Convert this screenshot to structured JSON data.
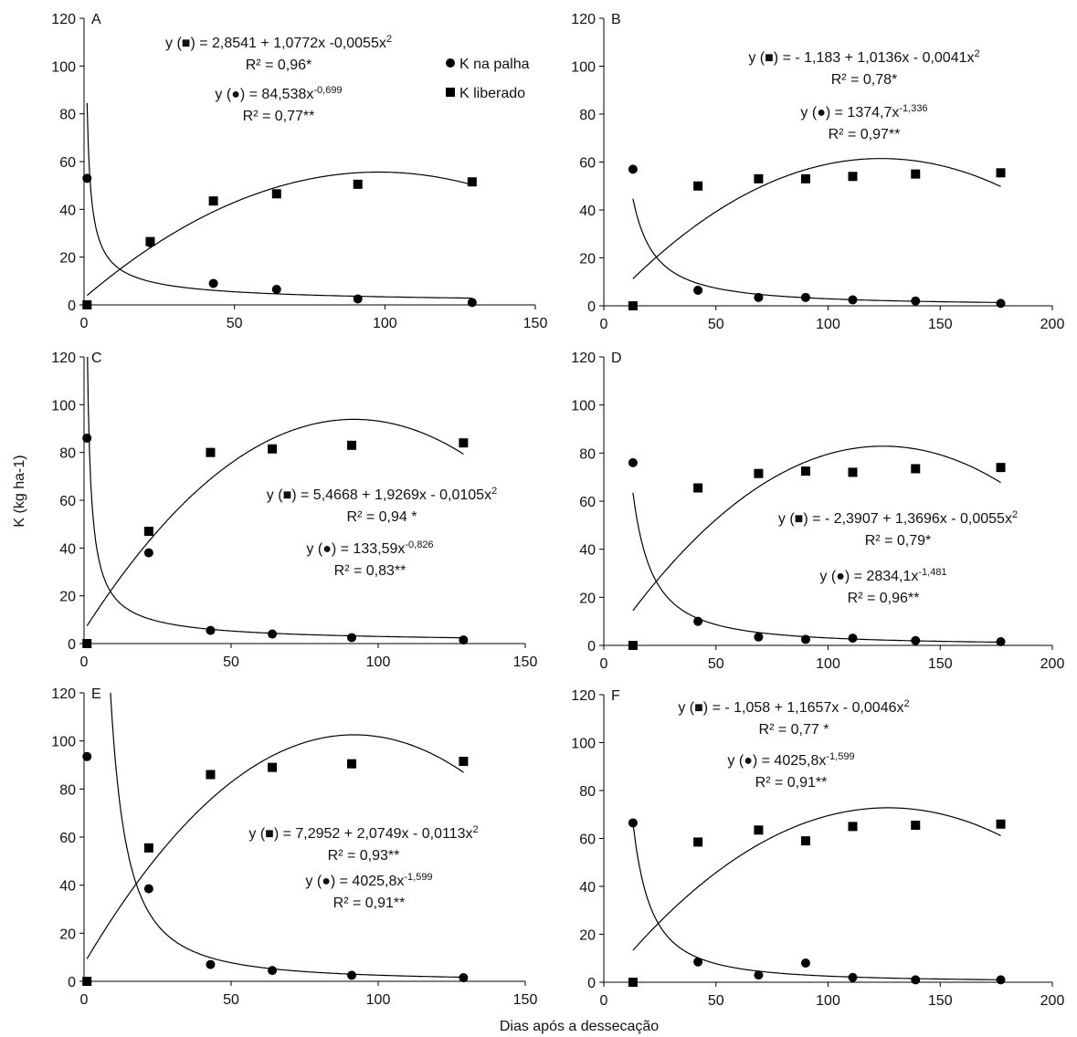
{
  "figure": {
    "xlabel": "Dias após a dessecação",
    "ylabel": "K (kg ha-1)",
    "legend": [
      {
        "marker": "circle",
        "label": "K na palha"
      },
      {
        "marker": "square",
        "label": "K liberado"
      }
    ]
  },
  "chart_data": [
    {
      "panel": "A",
      "type": "scatter",
      "xlim": [
        0,
        150
      ],
      "xticks": [
        0,
        50,
        100,
        150
      ],
      "ylim": [
        0,
        120
      ],
      "yticks": [
        0,
        20,
        40,
        60,
        80,
        100,
        120
      ],
      "series": [
        {
          "name": "K na palha",
          "marker": "circle",
          "x": [
            1,
            22,
            43,
            64,
            91,
            129
          ],
          "y": [
            53,
            26,
            9,
            6.5,
            2.5,
            1
          ]
        },
        {
          "name": "K liberado",
          "marker": "square",
          "x": [
            1,
            22,
            43,
            64,
            91,
            129
          ],
          "y": [
            0,
            26.5,
            43.5,
            46.5,
            50.5,
            51.5
          ]
        }
      ],
      "fits": [
        {
          "series": "K liberado",
          "model": "quadratic",
          "a": 2.8541,
          "b": 1.0772,
          "c": -0.0055,
          "x_range": [
            1,
            129
          ]
        },
        {
          "series": "K na palha",
          "model": "power",
          "a": 84.538,
          "b": -0.699,
          "x_range": [
            1,
            129
          ]
        }
      ],
      "equations": [
        {
          "line1": "y (■) = 2,8541 + 1,0772x  -0,0055x",
          "sup": "2",
          "r2": "R² = 0,96*"
        },
        {
          "line1": "y (●)  = 84,538x",
          "sup": "-0,699",
          "r2": "R² = 0,77**"
        }
      ]
    },
    {
      "panel": "B",
      "type": "scatter",
      "xlim": [
        0,
        200
      ],
      "xticks": [
        0,
        50,
        100,
        150,
        200
      ],
      "ylim": [
        0,
        120
      ],
      "yticks": [
        0,
        20,
        40,
        60,
        80,
        100,
        120
      ],
      "series": [
        {
          "name": "K na palha",
          "marker": "circle",
          "x": [
            13,
            42,
            69,
            90,
            111,
            139,
            177
          ],
          "y": [
            57,
            6.5,
            3.5,
            3.5,
            2.5,
            2,
            1
          ]
        },
        {
          "name": "K liberado",
          "marker": "square",
          "x": [
            13,
            42,
            69,
            90,
            111,
            139,
            177
          ],
          "y": [
            0,
            50,
            53,
            53,
            54,
            55,
            55.5
          ]
        }
      ],
      "fits": [
        {
          "series": "K liberado",
          "model": "quadratic",
          "a": -1.183,
          "b": 1.0136,
          "c": -0.0041,
          "x_range": [
            13,
            177
          ]
        },
        {
          "series": "K na palha",
          "model": "power",
          "a": 1374.7,
          "b": -1.336,
          "x_range": [
            13,
            177
          ]
        }
      ],
      "equations": [
        {
          "line1": "y (■) = - 1,183 + 1,0136x  - 0,0041x",
          "sup": "2",
          "r2": "R² = 0,78*"
        },
        {
          "line1": "y (●) = 1374,7x",
          "sup": "-1,336",
          "r2": "R² = 0,97**"
        }
      ]
    },
    {
      "panel": "C",
      "type": "scatter",
      "xlim": [
        0,
        150
      ],
      "xticks": [
        0,
        50,
        100,
        150
      ],
      "ylim": [
        0,
        120
      ],
      "yticks": [
        0,
        20,
        40,
        60,
        80,
        100,
        120
      ],
      "series": [
        {
          "name": "K na palha",
          "marker": "circle",
          "x": [
            1,
            22,
            43,
            64,
            91,
            129
          ],
          "y": [
            86,
            38,
            5.5,
            4,
            2.5,
            1.5
          ]
        },
        {
          "name": "K liberado",
          "marker": "square",
          "x": [
            1,
            22,
            43,
            64,
            91,
            129
          ],
          "y": [
            0,
            47,
            80,
            81.5,
            83,
            84
          ]
        }
      ],
      "fits": [
        {
          "series": "K liberado",
          "model": "quadratic",
          "a": 5.4668,
          "b": 1.9269,
          "c": -0.0105,
          "x_range": [
            1,
            129
          ]
        },
        {
          "series": "K na palha",
          "model": "power",
          "a": 133.59,
          "b": -0.826,
          "x_range": [
            1,
            129
          ]
        }
      ],
      "equations": [
        {
          "line1": "y (■) = 5,4668 + 1,9269x  - 0,0105x",
          "sup": "2",
          "r2": "R² = 0,94 *"
        },
        {
          "line1": "y (●) = 133,59x",
          "sup": "-0,826",
          "r2": "R² = 0,83**"
        }
      ]
    },
    {
      "panel": "D",
      "type": "scatter",
      "xlim": [
        0,
        200
      ],
      "xticks": [
        0,
        50,
        100,
        150,
        200
      ],
      "ylim": [
        0,
        120
      ],
      "yticks": [
        0,
        20,
        40,
        60,
        80,
        100,
        120
      ],
      "series": [
        {
          "name": "K na palha",
          "marker": "circle",
          "x": [
            13,
            42,
            69,
            90,
            111,
            139,
            177
          ],
          "y": [
            76,
            10,
            3.5,
            2.5,
            3,
            2,
            1.5
          ]
        },
        {
          "name": "K liberado",
          "marker": "square",
          "x": [
            13,
            42,
            69,
            90,
            111,
            139,
            177
          ],
          "y": [
            0,
            65.5,
            71.5,
            72.5,
            72,
            73.5,
            74
          ]
        }
      ],
      "fits": [
        {
          "series": "K liberado",
          "model": "quadratic",
          "a": -2.3907,
          "b": 1.3696,
          "c": -0.0055,
          "x_range": [
            13,
            177
          ]
        },
        {
          "series": "K na palha",
          "model": "power",
          "a": 2834.1,
          "b": -1.481,
          "x_range": [
            13,
            177
          ]
        }
      ],
      "equations": [
        {
          "line1": "y (■) = - 2,3907 + 1,3696x  - 0,0055x",
          "sup": "2",
          "r2": "R² = 0,79*"
        },
        {
          "line1": "y (●) = 2834,1x",
          "sup": "-1,481",
          "r2": "R² = 0,96**"
        }
      ]
    },
    {
      "panel": "E",
      "type": "scatter",
      "xlim": [
        0,
        150
      ],
      "xticks": [
        0,
        50,
        100,
        150
      ],
      "ylim": [
        0,
        120
      ],
      "yticks": [
        0,
        20,
        40,
        60,
        80,
        100,
        120
      ],
      "series": [
        {
          "name": "K na palha",
          "marker": "circle",
          "x": [
            1,
            22,
            43,
            64,
            91,
            129
          ],
          "y": [
            93.5,
            38.5,
            7,
            4.5,
            2.5,
            1.5
          ]
        },
        {
          "name": "K liberado",
          "marker": "square",
          "x": [
            1,
            22,
            43,
            64,
            91,
            129
          ],
          "y": [
            0,
            55.5,
            86,
            89,
            90.5,
            91.5
          ]
        }
      ],
      "fits": [
        {
          "series": "K liberado",
          "model": "quadratic",
          "a": 7.2952,
          "b": 2.0749,
          "c": -0.0113,
          "x_range": [
            1,
            129
          ]
        },
        {
          "series": "K na palha",
          "model": "power",
          "a": 4025.8,
          "b": -1.599,
          "x_range": [
            1,
            129
          ]
        }
      ],
      "equations": [
        {
          "line1": "y (■) = 7,2952 + 2,0749x  - 0,0113x",
          "sup": "2",
          "r2": "R² = 0,93**"
        },
        {
          "line1": "y (●) = 4025,8x",
          "sup": "-1,599",
          "r2": "R² = 0,91**"
        }
      ]
    },
    {
      "panel": "F",
      "type": "scatter",
      "xlim": [
        0,
        200
      ],
      "xticks": [
        0,
        50,
        100,
        150,
        200
      ],
      "ylim": [
        0,
        120
      ],
      "yticks": [
        0,
        20,
        40,
        60,
        80,
        100,
        120
      ],
      "series": [
        {
          "name": "K na palha",
          "marker": "circle",
          "x": [
            13,
            42,
            69,
            90,
            111,
            139,
            177
          ],
          "y": [
            66.5,
            8.5,
            3,
            8,
            2,
            1,
            1
          ]
        },
        {
          "name": "K liberado",
          "marker": "square",
          "x": [
            13,
            42,
            69,
            90,
            111,
            139,
            177
          ],
          "y": [
            0,
            58.5,
            63.5,
            59,
            65,
            65.5,
            66
          ]
        }
      ],
      "fits": [
        {
          "series": "K liberado",
          "model": "quadratic",
          "a": -1.058,
          "b": 1.1657,
          "c": -0.0046,
          "x_range": [
            13,
            177
          ]
        },
        {
          "series": "K na palha",
          "model": "power",
          "a": 4025.8,
          "b": -1.599,
          "x_range": [
            13,
            177
          ]
        }
      ],
      "equations": [
        {
          "line1": "y (■) = - 1,058 + 1,1657x  - 0,0046x",
          "sup": "2",
          "r2": "R² = 0,77 *"
        },
        {
          "line1": "y (●) = 4025,8x",
          "sup": "-1,599",
          "r2": "R² = 0,91**"
        }
      ]
    }
  ]
}
